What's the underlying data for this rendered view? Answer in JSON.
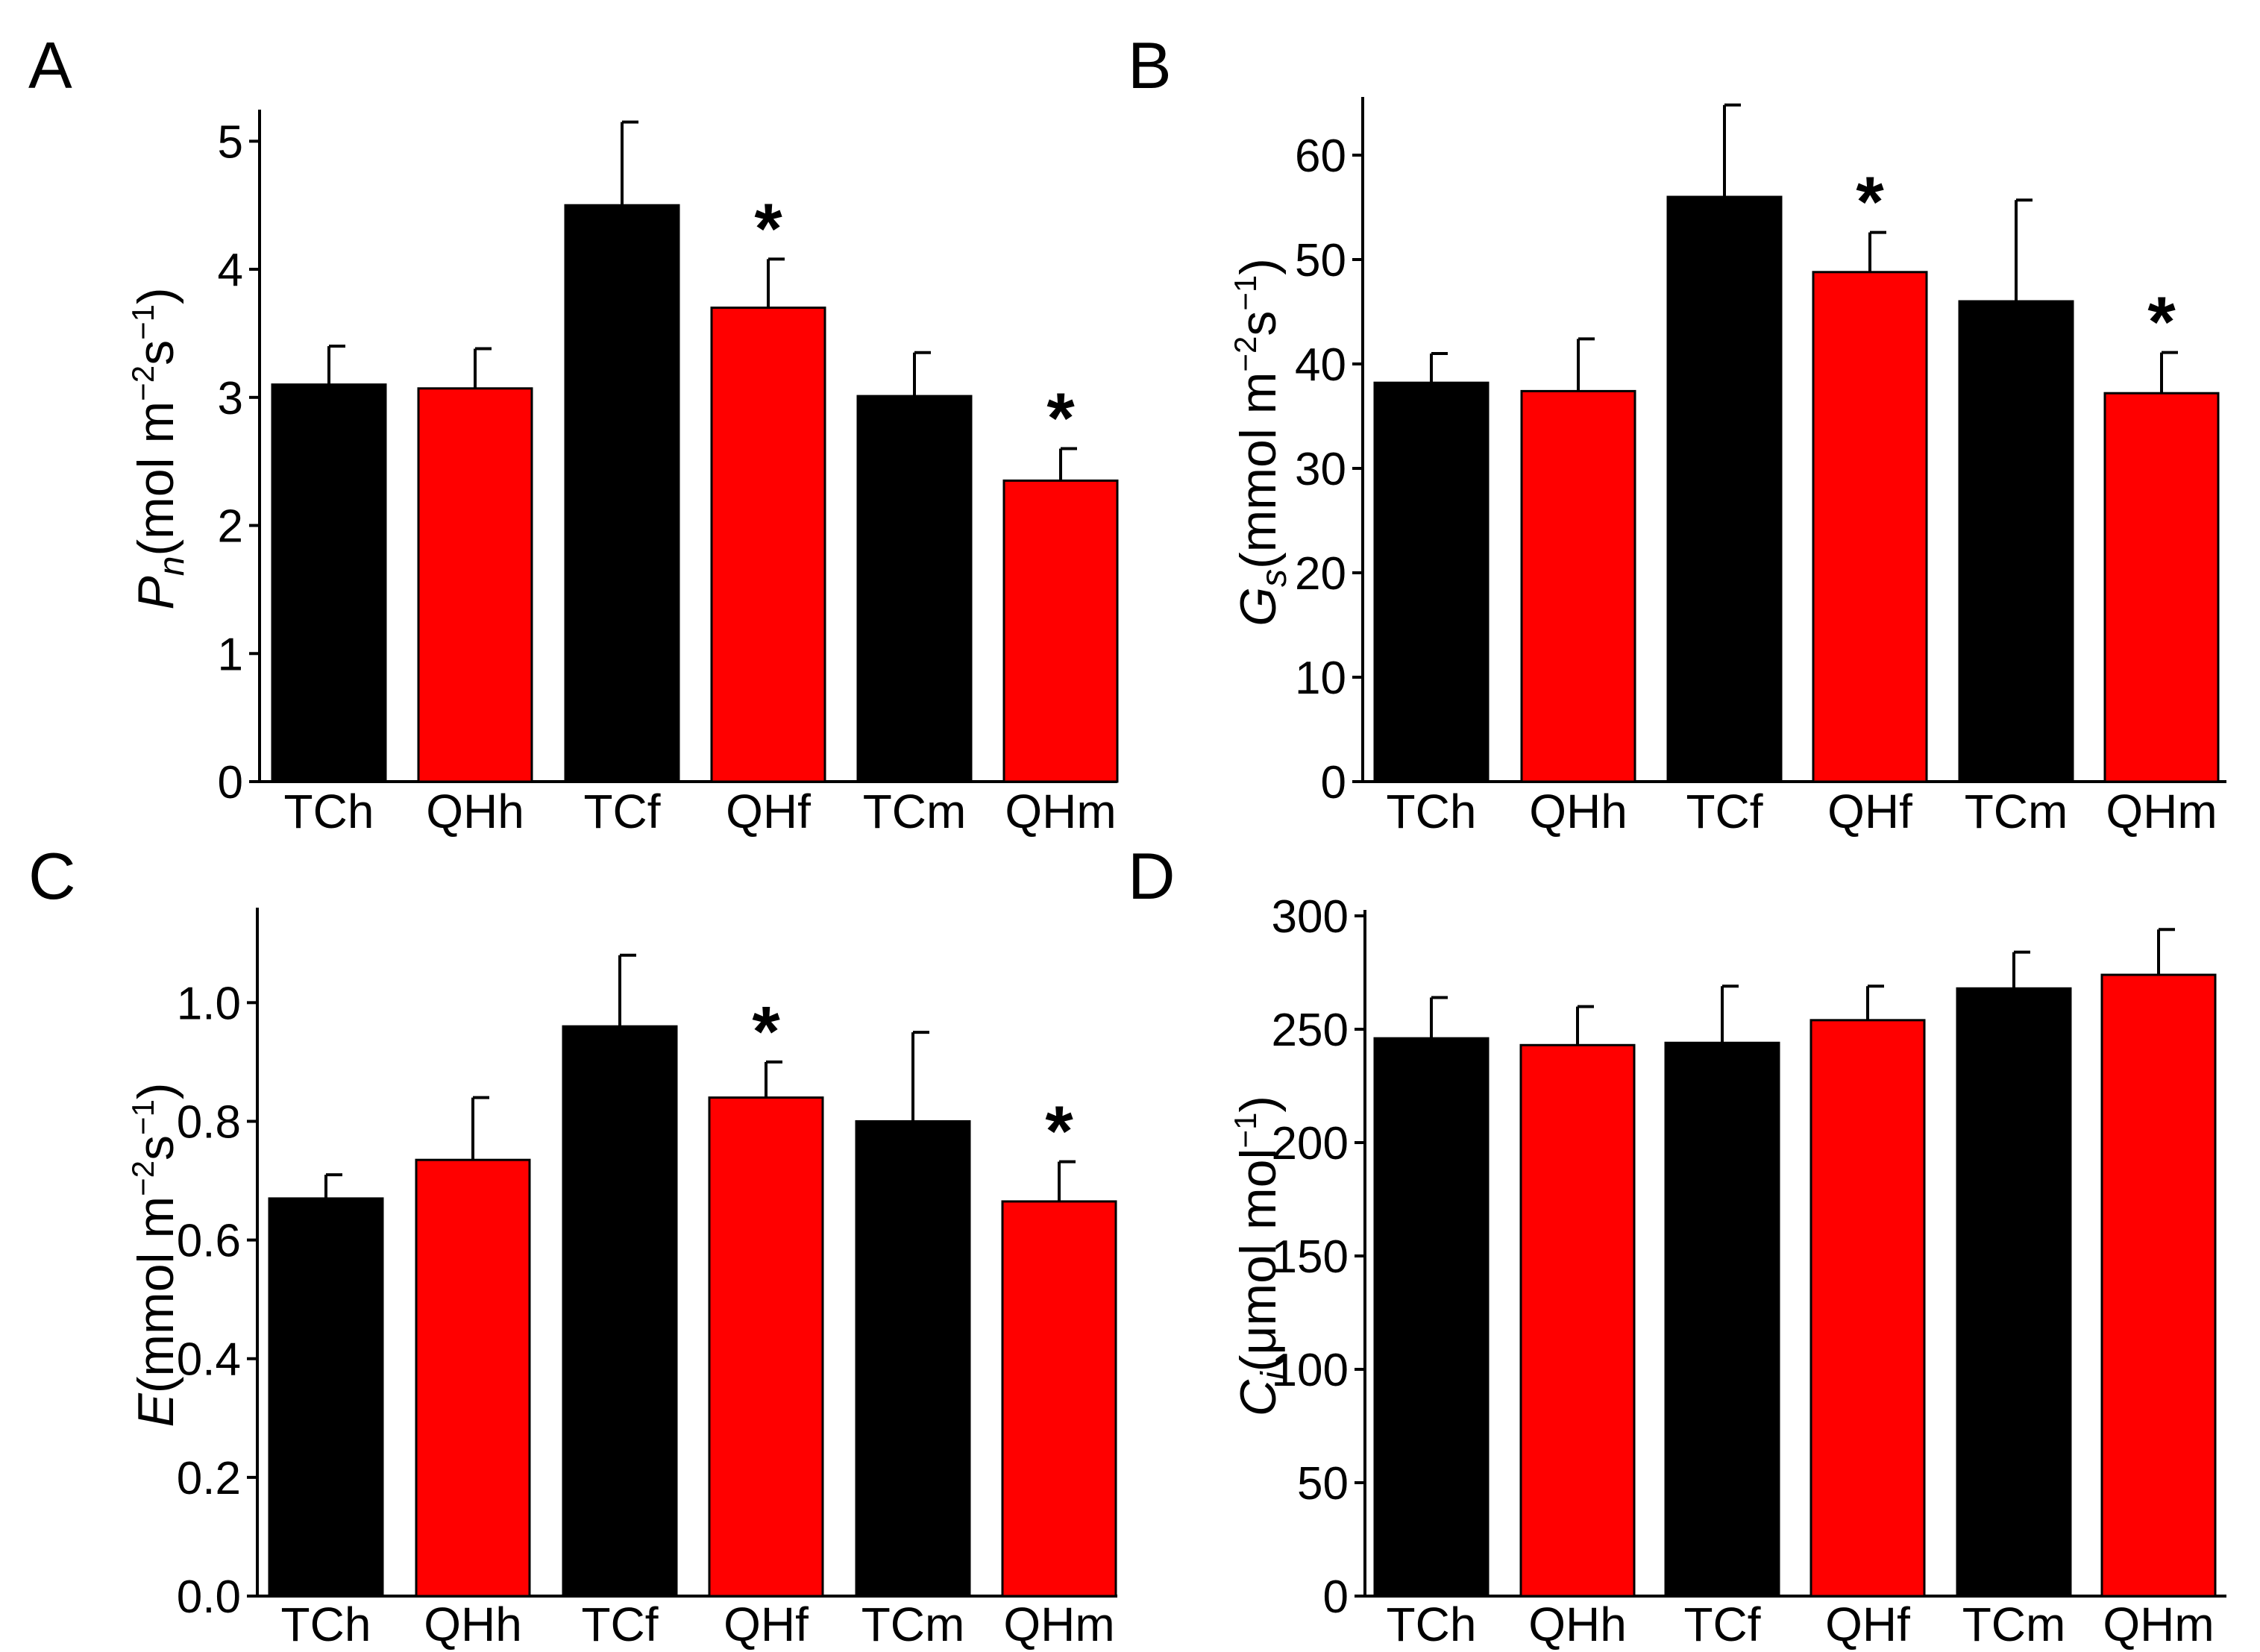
{
  "figure": {
    "colors": {
      "black_bar": "#000000",
      "red_bar": "#ff0000",
      "axis": "#000000"
    }
  },
  "chart_data": [
    {
      "panel": "A",
      "type": "bar",
      "categories": [
        "TCh",
        "QHh",
        "TCf",
        "QHf",
        "TCm",
        "QHm"
      ],
      "values": [
        3.1,
        3.07,
        4.5,
        3.7,
        3.01,
        2.35
      ],
      "errors": [
        0.3,
        0.31,
        0.65,
        0.38,
        0.34,
        0.25
      ],
      "colors": [
        "#000000",
        "#ff0000",
        "#000000",
        "#ff0000",
        "#000000",
        "#ff0000"
      ],
      "significant": [
        false,
        false,
        false,
        true,
        false,
        true
      ],
      "significance_marker": "*",
      "ylabel_var": "P",
      "ylabel_sub": "n",
      "ylabel_unit_pre": "(mol m",
      "ylabel_sup1": "−2",
      "ylabel_mid": "s",
      "ylabel_sup2": "−1",
      "ylabel_close": ")",
      "ylim": [
        0,
        5.2
      ],
      "yticks": [
        0,
        1,
        2,
        3,
        4,
        5
      ],
      "ytick_labels": [
        "0",
        "1",
        "2",
        "3",
        "4",
        "5"
      ]
    },
    {
      "panel": "B",
      "type": "bar",
      "categories": [
        "TCh",
        "QHh",
        "TCf",
        "QHf",
        "TCm",
        "QHm"
      ],
      "values": [
        38.2,
        37.4,
        56.0,
        48.8,
        46.0,
        37.2
      ],
      "errors": [
        2.8,
        5.0,
        8.8,
        3.8,
        9.7,
        3.9
      ],
      "colors": [
        "#000000",
        "#ff0000",
        "#000000",
        "#ff0000",
        "#000000",
        "#ff0000"
      ],
      "significant": [
        false,
        false,
        false,
        true,
        false,
        true
      ],
      "significance_marker": "*",
      "ylabel_var": "G",
      "ylabel_sub": "s",
      "ylabel_unit_pre": "(mmol m",
      "ylabel_sup1": "−2",
      "ylabel_mid": "s",
      "ylabel_sup2": "−1",
      "ylabel_close": ")",
      "ylim": [
        0,
        65
      ],
      "yticks": [
        0,
        10,
        20,
        30,
        40,
        50,
        60
      ],
      "ytick_labels": [
        "0",
        "10",
        "20",
        "30",
        "40",
        "50",
        "60"
      ]
    },
    {
      "panel": "C",
      "type": "bar",
      "categories": [
        "TCh",
        "QHh",
        "TCf",
        "QHf",
        "TCm",
        "QHm"
      ],
      "values": [
        0.67,
        0.735,
        0.96,
        0.84,
        0.8,
        0.665
      ],
      "errors": [
        0.04,
        0.105,
        0.12,
        0.06,
        0.15,
        0.067
      ],
      "colors": [
        "#000000",
        "#ff0000",
        "#000000",
        "#ff0000",
        "#000000",
        "#ff0000"
      ],
      "significant": [
        false,
        false,
        false,
        true,
        false,
        true
      ],
      "significance_marker": "*",
      "ylabel_var": "E",
      "ylabel_sub": "",
      "ylabel_unit_pre": "(mmol m",
      "ylabel_sup1": "−2",
      "ylabel_mid": "s",
      "ylabel_sup2": "−1",
      "ylabel_close": ")",
      "ylim": [
        0,
        1.15
      ],
      "yticks": [
        0.0,
        0.2,
        0.4,
        0.6,
        0.8,
        1.0
      ],
      "ytick_labels": [
        "0.0",
        "0.2",
        "0.4",
        "0.6",
        "0.8",
        "1.0"
      ]
    },
    {
      "panel": "D",
      "type": "bar",
      "categories": [
        "TCh",
        "QHh",
        "TCf",
        "QHf",
        "TCm",
        "QHm"
      ],
      "values": [
        246,
        243,
        244,
        254,
        268,
        274
      ],
      "errors": [
        18,
        17,
        25,
        15,
        16,
        20
      ],
      "colors": [
        "#000000",
        "#ff0000",
        "#000000",
        "#ff0000",
        "#000000",
        "#ff0000"
      ],
      "significant": [
        false,
        false,
        false,
        false,
        false,
        false
      ],
      "significance_marker": "*",
      "ylabel_var": "C",
      "ylabel_sub": "i",
      "ylabel_unit_pre": "(μmol mol",
      "ylabel_sup1": "−1",
      "ylabel_mid": "",
      "ylabel_sup2": "",
      "ylabel_close": ")",
      "ylim": [
        0,
        300
      ],
      "yticks": [
        0,
        50,
        100,
        150,
        200,
        250,
        300
      ],
      "ytick_labels": [
        "0",
        "50",
        "100",
        "150",
        "200",
        "250",
        "300"
      ]
    }
  ]
}
